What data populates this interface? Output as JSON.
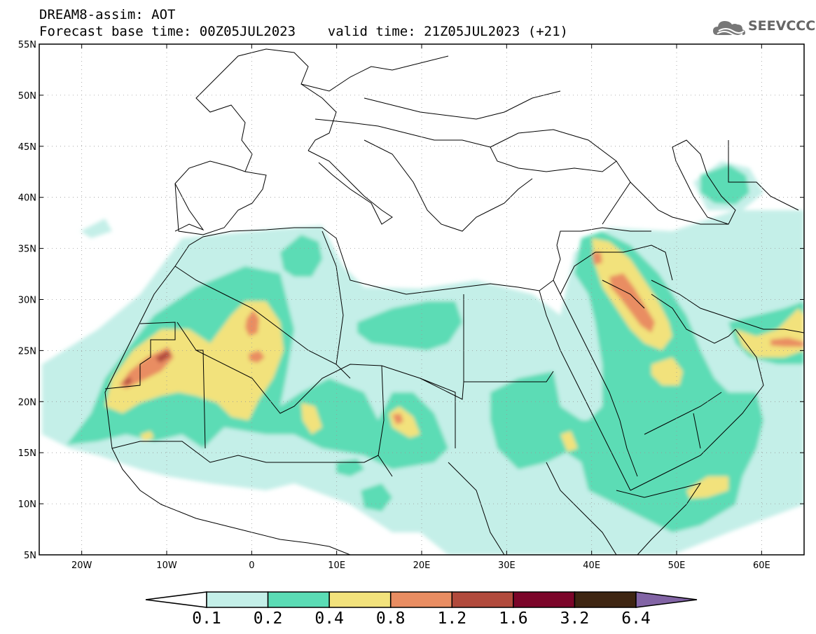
{
  "header": {
    "title": "DREAM8-assim: AOT",
    "subtitle": "Forecast base time: 00Z05JUL2023    valid time: 21Z05JUL2023 (+21)"
  },
  "logo": {
    "text": "SEEVCCC",
    "icon": "cloud-icon"
  },
  "map": {
    "lon_range": [
      -25,
      65
    ],
    "lat_range": [
      5,
      55
    ],
    "lat_ticks": [
      {
        "value": 55,
        "label": "55N"
      },
      {
        "value": 50,
        "label": "50N"
      },
      {
        "value": 45,
        "label": "45N"
      },
      {
        "value": 40,
        "label": "40N"
      },
      {
        "value": 35,
        "label": "35N"
      },
      {
        "value": 30,
        "label": "30N"
      },
      {
        "value": 25,
        "label": "25N"
      },
      {
        "value": 20,
        "label": "20N"
      },
      {
        "value": 15,
        "label": "15N"
      },
      {
        "value": 10,
        "label": "10N"
      },
      {
        "value": 5,
        "label": "5N"
      }
    ],
    "lon_ticks": [
      {
        "value": -20,
        "label": "20W"
      },
      {
        "value": -10,
        "label": "10W"
      },
      {
        "value": 0,
        "label": "0"
      },
      {
        "value": 10,
        "label": "10E"
      },
      {
        "value": 20,
        "label": "20E"
      },
      {
        "value": 30,
        "label": "30E"
      },
      {
        "value": 40,
        "label": "40E"
      },
      {
        "value": 50,
        "label": "50E"
      },
      {
        "value": 60,
        "label": "60E"
      }
    ],
    "grid": true
  },
  "colorbar": {
    "colors": [
      "#c4efe8",
      "#5bdcb5",
      "#f2e27c",
      "#e98d62",
      "#b14a3c",
      "#7b0529",
      "#3e2512"
    ],
    "under_color": "#ffffff",
    "over_color": "#8264a5",
    "labels": [
      "0.1",
      "0.2",
      "0.4",
      "0.8",
      "1.2",
      "1.6",
      "3.2",
      "6.4"
    ]
  }
}
